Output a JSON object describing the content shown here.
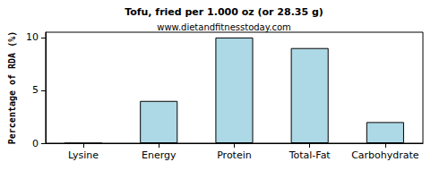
{
  "chart_data": {
    "type": "bar",
    "title": "Tofu, fried per 1.000 oz (or 28.35 g)",
    "subtitle": "www.dietandfitnesstoday.com",
    "y_label": "Percentage of RDA (%)",
    "categories": [
      "Lysine",
      "Energy",
      "Protein",
      "Total-Fat",
      "Carbohydrate"
    ],
    "values": [
      0,
      4,
      10,
      9,
      2
    ],
    "color": "#add8e6",
    "ylim": [
      0,
      10.5
    ],
    "yticks": [
      0,
      5,
      10
    ],
    "grid": false
  }
}
